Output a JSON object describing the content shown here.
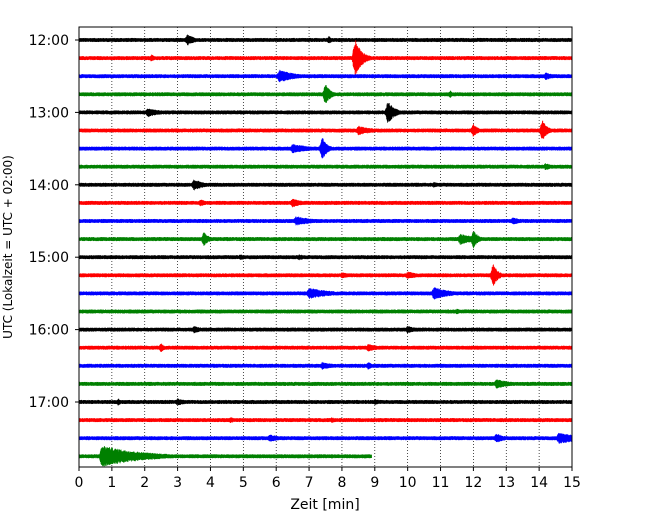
{
  "chart_data": {
    "type": "line",
    "title": "",
    "xlabel": "Zeit  [min]",
    "ylabel": "UTC (Lokalzeit = UTC + 02:00)",
    "xlim": [
      0,
      15
    ],
    "xticks": [
      "0",
      "1",
      "2",
      "3",
      "4",
      "5",
      "6",
      "7",
      "8",
      "9",
      "10",
      "11",
      "12",
      "13",
      "14",
      "15"
    ],
    "yticks": [
      "12:00",
      "13:00",
      "14:00",
      "15:00",
      "16:00",
      "17:00"
    ],
    "grid": "vertical dotted",
    "color_cycle": [
      "#000000",
      "#ff0000",
      "#0000ff",
      "#008000"
    ],
    "traces": [
      {
        "start": "12:00",
        "color": "#000000",
        "end_min": 15,
        "events": [
          [
            3.3,
            0.6,
            0.25
          ],
          [
            7.6,
            0.4,
            0.15
          ]
        ]
      },
      {
        "start": "12:15",
        "color": "#ff0000",
        "end_min": 15,
        "events": [
          [
            2.2,
            0.4,
            0.12
          ],
          [
            8.4,
            2.2,
            0.2
          ]
        ]
      },
      {
        "start": "12:30",
        "color": "#0000ff",
        "end_min": 15,
        "events": [
          [
            6.1,
            0.7,
            0.5
          ],
          [
            14.2,
            0.4,
            0.3
          ]
        ]
      },
      {
        "start": "12:45",
        "color": "#008000",
        "end_min": 15,
        "events": [
          [
            7.5,
            1.2,
            0.15
          ],
          [
            11.3,
            0.4,
            0.1
          ]
        ]
      },
      {
        "start": "13:00",
        "color": "#000000",
        "end_min": 15,
        "events": [
          [
            2.1,
            0.5,
            0.4
          ],
          [
            9.4,
            1.3,
            0.2
          ]
        ]
      },
      {
        "start": "13:15",
        "color": "#ff0000",
        "end_min": 15,
        "events": [
          [
            8.5,
            0.5,
            0.5
          ],
          [
            12.0,
            0.7,
            0.15
          ],
          [
            14.1,
            1.2,
            0.15
          ]
        ]
      },
      {
        "start": "13:30",
        "color": "#0000ff",
        "end_min": 15,
        "events": [
          [
            6.5,
            0.5,
            0.6
          ],
          [
            7.4,
            1.3,
            0.15
          ]
        ]
      },
      {
        "start": "13:45",
        "color": "#008000",
        "end_min": 15,
        "events": [
          [
            14.2,
            0.4,
            0.2
          ]
        ]
      },
      {
        "start": "14:00",
        "color": "#000000",
        "end_min": 15,
        "events": [
          [
            3.5,
            0.6,
            0.35
          ],
          [
            10.8,
            0.3,
            0.2
          ]
        ]
      },
      {
        "start": "14:15",
        "color": "#ff0000",
        "end_min": 15,
        "events": [
          [
            3.7,
            0.4,
            0.2
          ],
          [
            6.5,
            0.5,
            0.3
          ]
        ]
      },
      {
        "start": "14:30",
        "color": "#0000ff",
        "end_min": 15,
        "events": [
          [
            6.6,
            0.5,
            0.6
          ],
          [
            13.2,
            0.4,
            0.3
          ]
        ]
      },
      {
        "start": "14:45",
        "color": "#008000",
        "end_min": 15,
        "events": [
          [
            3.8,
            0.8,
            0.15
          ],
          [
            11.6,
            0.6,
            0.5
          ],
          [
            12.0,
            1.0,
            0.15
          ]
        ]
      },
      {
        "start": "15:00",
        "color": "#000000",
        "end_min": 15,
        "events": [
          [
            4.9,
            0.3,
            0.3
          ],
          [
            6.7,
            0.3,
            0.3
          ]
        ]
      },
      {
        "start": "15:15",
        "color": "#ff0000",
        "end_min": 15,
        "events": [
          [
            8.0,
            0.3,
            0.4
          ],
          [
            10.0,
            0.4,
            0.4
          ],
          [
            12.6,
            1.3,
            0.15
          ]
        ]
      },
      {
        "start": "15:30",
        "color": "#0000ff",
        "end_min": 15,
        "events": [
          [
            7.0,
            0.6,
            0.7
          ],
          [
            10.8,
            0.7,
            0.5
          ]
        ]
      },
      {
        "start": "15:45",
        "color": "#008000",
        "end_min": 15,
        "events": [
          [
            11.5,
            0.3,
            0.15
          ]
        ]
      },
      {
        "start": "16:00",
        "color": "#000000",
        "end_min": 15,
        "events": [
          [
            3.5,
            0.4,
            0.3
          ],
          [
            10.0,
            0.4,
            0.3
          ]
        ]
      },
      {
        "start": "16:15",
        "color": "#ff0000",
        "end_min": 15,
        "events": [
          [
            2.5,
            0.5,
            0.12
          ],
          [
            8.8,
            0.4,
            0.4
          ]
        ]
      },
      {
        "start": "16:30",
        "color": "#0000ff",
        "end_min": 15,
        "events": [
          [
            7.4,
            0.4,
            0.4
          ],
          [
            8.8,
            0.4,
            0.15
          ]
        ]
      },
      {
        "start": "16:45",
        "color": "#008000",
        "end_min": 15,
        "events": [
          [
            12.7,
            0.5,
            0.5
          ]
        ]
      },
      {
        "start": "17:00",
        "color": "#000000",
        "end_min": 15,
        "events": [
          [
            1.2,
            0.4,
            0.1
          ],
          [
            3.0,
            0.4,
            0.3
          ],
          [
            9.0,
            0.3,
            0.3
          ]
        ]
      },
      {
        "start": "17:15",
        "color": "#ff0000",
        "end_min": 15,
        "events": [
          [
            4.6,
            0.3,
            0.3
          ],
          [
            7.7,
            0.3,
            0.2
          ]
        ]
      },
      {
        "start": "17:30",
        "color": "#0000ff",
        "end_min": 15,
        "events": [
          [
            5.8,
            0.4,
            0.4
          ],
          [
            12.7,
            0.5,
            0.3
          ],
          [
            14.6,
            0.6,
            0.8
          ]
        ]
      },
      {
        "start": "17:45",
        "color": "#008000",
        "end_min": 8.9,
        "events": [
          [
            0.7,
            1.2,
            1.2
          ],
          [
            2.1,
            0.3,
            0.6
          ]
        ]
      }
    ]
  }
}
